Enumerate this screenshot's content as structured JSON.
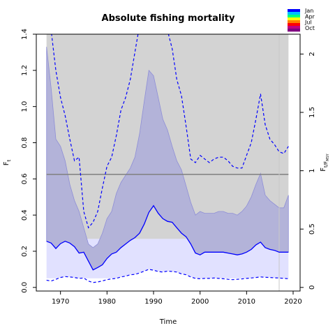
{
  "chart_data": {
    "type": "line",
    "title": "Absolute fishing mortality",
    "xlabel": "Time",
    "ylabel": "F",
    "ylabel_sub": "t",
    "ylabel_right": "F",
    "ylabel_right_sub": "t/F",
    "ylabel_right_subsub": "MSY",
    "xlim": [
      1964.8,
      2021.5
    ],
    "ylim": [
      -0.02,
      1.4
    ],
    "ylim_right": [
      -0.031,
      2.17
    ],
    "x_ticks": [
      1970,
      1980,
      1990,
      2000,
      2010,
      2020
    ],
    "y_ticks": [
      0.0,
      0.2,
      0.4,
      0.6,
      0.8,
      1.0,
      1.2,
      1.4
    ],
    "y_ticks_right": [
      0,
      0.5,
      1,
      1.5,
      2
    ],
    "fmsy_line": 0.625,
    "vertical_line_x": 2017,
    "grey_region": {
      "x": [
        1967,
        2019
      ],
      "y": [
        0.268,
        1.4
      ]
    },
    "lavender_band": {
      "x": [
        1967,
        2019
      ],
      "y": [
        0.05,
        0.268
      ]
    },
    "legend": [
      "Jan",
      "Apr",
      "Jul",
      "Oct"
    ],
    "legend_colors": [
      "#0000ff",
      "#00bfff",
      "#00ff80",
      "#ffff00",
      "#ff8000",
      "#ff0000",
      "#c00080",
      "#800080"
    ],
    "colors": {
      "estimate": "#0000ff",
      "ci_fill": "#b3b3d9",
      "ci_edge": "#8e8ed6",
      "grey": "#d3d3d3",
      "band": "#e1e1ff",
      "fmsy": "#7f7f7f"
    },
    "series": [
      {
        "x": [
          1967,
          1968,
          1969,
          1970,
          1971,
          1972,
          1973,
          1974,
          1975,
          1976,
          1977,
          1978,
          1979,
          1980,
          1981,
          1982,
          1983,
          1984,
          1985,
          1986,
          1987,
          1988,
          1989,
          1990,
          1991,
          1992,
          1993,
          1994,
          1995,
          1996,
          1997,
          1998,
          1999,
          2000,
          2001,
          2002,
          2003,
          2004,
          2005,
          2006,
          2007,
          2008,
          2009,
          2010,
          2011,
          2012,
          2013,
          2014,
          2015,
          2016,
          2017,
          2018,
          2019
        ],
        "y": [
          0.255,
          0.245,
          0.215,
          0.242,
          0.255,
          0.245,
          0.225,
          0.19,
          0.195,
          0.145,
          0.097,
          0.11,
          0.125,
          0.16,
          0.185,
          0.195,
          0.22,
          0.24,
          0.26,
          0.275,
          0.3,
          0.35,
          0.415,
          0.452,
          0.41,
          0.38,
          0.365,
          0.36,
          0.33,
          0.3,
          0.28,
          0.24,
          0.19,
          0.18,
          0.195,
          0.195,
          0.195,
          0.195,
          0.195,
          0.19,
          0.185,
          0.18,
          0.185,
          0.195,
          0.21,
          0.235,
          0.25,
          0.22,
          0.21,
          0.205,
          0.195,
          0.195,
          0.195
        ]
      },
      {
        "x": [
          1967,
          1968,
          1969,
          1970,
          1971,
          1972,
          1973,
          1974,
          1975,
          1976,
          1977,
          1978,
          1979,
          1980,
          1981,
          1982,
          1983,
          1984,
          1985,
          1986,
          1987,
          1988,
          1989,
          1990,
          1991,
          1992,
          1993,
          1994,
          1995,
          1996,
          1997,
          1998,
          1999,
          2000,
          2001,
          2002,
          2003,
          2004,
          2005,
          2006,
          2007,
          2008,
          2009,
          2010,
          2011,
          2012,
          2013,
          2014,
          2015,
          2016,
          2017,
          2018,
          2019
        ],
        "y": [
          0.04,
          0.035,
          0.045,
          0.055,
          0.06,
          0.058,
          0.055,
          0.05,
          0.052,
          0.035,
          0.027,
          0.03,
          0.036,
          0.043,
          0.047,
          0.05,
          0.058,
          0.062,
          0.07,
          0.072,
          0.08,
          0.09,
          0.1,
          0.095,
          0.088,
          0.085,
          0.09,
          0.088,
          0.085,
          0.075,
          0.07,
          0.058,
          0.05,
          0.048,
          0.05,
          0.05,
          0.052,
          0.05,
          0.048,
          0.045,
          0.043,
          0.045,
          0.047,
          0.05,
          0.052,
          0.055,
          0.058,
          0.056,
          0.055,
          0.053,
          0.052,
          0.05,
          0.048
        ]
      },
      {
        "x": [
          1967,
          1968,
          1969,
          1970,
          1971,
          1972,
          1973,
          1974,
          1975,
          1976,
          1977,
          1978,
          1979,
          1980,
          1981,
          1982,
          1983,
          1984,
          1985,
          1986,
          1987,
          1988,
          1989,
          1990,
          1991,
          1992,
          1993,
          1994,
          1995,
          1996,
          1997,
          1998,
          1999,
          2000,
          2001,
          2002,
          2003,
          2004,
          2005,
          2006,
          2007,
          2008,
          2009,
          2010,
          2011,
          2012,
          2013,
          2014,
          2015,
          2016,
          2017,
          2018,
          2019
        ],
        "y": [
          1.45,
          1.42,
          1.2,
          1.05,
          0.95,
          0.82,
          0.7,
          0.72,
          0.42,
          0.33,
          0.36,
          0.42,
          0.55,
          0.67,
          0.72,
          0.84,
          0.98,
          1.05,
          1.15,
          1.3,
          1.45,
          1.6,
          1.7,
          1.68,
          1.52,
          1.45,
          1.42,
          1.32,
          1.15,
          1.06,
          0.89,
          0.71,
          0.69,
          0.73,
          0.71,
          0.69,
          0.71,
          0.72,
          0.72,
          0.7,
          0.67,
          0.66,
          0.66,
          0.73,
          0.8,
          0.93,
          1.07,
          0.9,
          0.82,
          0.79,
          0.75,
          0.74,
          0.78
        ]
      },
      {
        "x": [
          1967,
          1968,
          1969,
          1970,
          1971,
          1972,
          1973,
          1974,
          1975,
          1976,
          1977,
          1978,
          1979,
          1980,
          1981,
          1982,
          1983,
          1984,
          1985,
          1986,
          1987,
          1988,
          1989,
          1990,
          1991,
          1992,
          1993,
          1994,
          1995,
          1996,
          1997,
          1998,
          1999,
          2000,
          2001,
          2002,
          2003,
          2004,
          2005,
          2006,
          2007,
          2008,
          2009,
          2010,
          2011,
          2012,
          2013,
          2014,
          2015,
          2016,
          2017,
          2018,
          2019
        ],
        "y": [
          1.33,
          1.1,
          0.82,
          0.78,
          0.7,
          0.57,
          0.48,
          0.42,
          0.33,
          0.24,
          0.22,
          0.24,
          0.3,
          0.38,
          0.42,
          0.52,
          0.58,
          0.62,
          0.66,
          0.72,
          0.85,
          1.03,
          1.2,
          1.17,
          1.05,
          0.93,
          0.87,
          0.78,
          0.7,
          0.65,
          0.56,
          0.47,
          0.4,
          0.42,
          0.41,
          0.41,
          0.41,
          0.42,
          0.42,
          0.41,
          0.41,
          0.4,
          0.42,
          0.45,
          0.5,
          0.57,
          0.63,
          0.51,
          0.48,
          0.46,
          0.44,
          0.44,
          0.51
        ]
      }
    ]
  }
}
